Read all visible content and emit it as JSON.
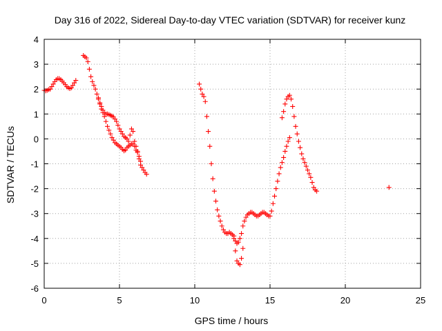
{
  "chart_data": {
    "type": "scatter",
    "title": "Day 316 of 2022, Sidereal Day-to-day VTEC variation (SDTVAR) for receiver kunz",
    "xlabel": "GPS time / hours",
    "ylabel": "SDTVAR / TECUs",
    "xlim": [
      0,
      25
    ],
    "ylim": [
      -6,
      4
    ],
    "xticks": [
      0,
      5,
      10,
      15,
      20,
      25
    ],
    "yticks": [
      -6,
      -5,
      -4,
      -3,
      -2,
      -1,
      0,
      1,
      2,
      3,
      4
    ],
    "grid": true,
    "marker": "plus",
    "color": "#ff0000",
    "series": [
      {
        "points": [
          [
            0.0,
            1.95
          ],
          [
            0.1,
            1.93
          ],
          [
            0.2,
            1.95
          ],
          [
            0.3,
            1.98
          ],
          [
            0.4,
            2.0
          ],
          [
            0.5,
            2.1
          ],
          [
            0.6,
            2.2
          ],
          [
            0.7,
            2.3
          ],
          [
            0.8,
            2.38
          ],
          [
            0.9,
            2.42
          ],
          [
            1.0,
            2.42
          ],
          [
            1.1,
            2.38
          ],
          [
            1.2,
            2.32
          ],
          [
            1.3,
            2.25
          ],
          [
            1.4,
            2.18
          ],
          [
            1.5,
            2.1
          ],
          [
            1.6,
            2.05
          ],
          [
            1.7,
            2.02
          ],
          [
            1.8,
            2.05
          ],
          [
            1.9,
            2.15
          ],
          [
            2.0,
            2.25
          ],
          [
            2.1,
            2.35
          ],
          [
            2.6,
            3.35
          ],
          [
            2.7,
            3.3
          ],
          [
            2.8,
            3.25
          ],
          [
            2.9,
            3.1
          ],
          [
            3.0,
            2.8
          ],
          [
            3.1,
            2.5
          ],
          [
            3.2,
            2.3
          ],
          [
            3.3,
            2.15
          ],
          [
            3.4,
            2.0
          ],
          [
            3.5,
            1.8
          ],
          [
            3.6,
            1.6
          ],
          [
            3.7,
            1.4
          ],
          [
            3.8,
            1.2
          ],
          [
            3.9,
            1.05
          ],
          [
            4.0,
            0.9
          ],
          [
            4.1,
            0.7
          ],
          [
            4.2,
            0.5
          ],
          [
            4.3,
            0.35
          ],
          [
            4.4,
            0.2
          ],
          [
            4.5,
            0.05
          ],
          [
            4.6,
            -0.05
          ],
          [
            4.7,
            -0.15
          ],
          [
            4.8,
            -0.2
          ],
          [
            4.9,
            -0.25
          ],
          [
            5.0,
            -0.3
          ],
          [
            5.1,
            -0.35
          ],
          [
            5.2,
            -0.42
          ],
          [
            5.3,
            -0.48
          ],
          [
            5.4,
            -0.45
          ],
          [
            5.5,
            -0.35
          ],
          [
            5.6,
            -0.3
          ],
          [
            5.7,
            -0.25
          ],
          [
            5.8,
            -0.2
          ],
          [
            5.9,
            -0.2
          ],
          [
            6.0,
            -0.3
          ],
          [
            6.1,
            -0.45
          ],
          [
            6.2,
            -0.55
          ],
          [
            6.3,
            -0.7
          ],
          [
            6.4,
            -0.9
          ],
          [
            3.6,
            1.65
          ],
          [
            3.7,
            1.45
          ],
          [
            3.8,
            1.3
          ],
          [
            3.9,
            1.15
          ],
          [
            4.0,
            1.05
          ],
          [
            4.1,
            1.0
          ],
          [
            4.2,
            1.0
          ],
          [
            4.3,
            0.98
          ],
          [
            4.4,
            0.95
          ],
          [
            4.5,
            0.92
          ],
          [
            4.6,
            0.88
          ],
          [
            4.7,
            0.8
          ],
          [
            4.8,
            0.7
          ],
          [
            4.9,
            0.55
          ],
          [
            5.0,
            0.4
          ],
          [
            5.1,
            0.3
          ],
          [
            5.2,
            0.2
          ],
          [
            5.3,
            0.1
          ],
          [
            5.4,
            0.05
          ],
          [
            5.5,
            0.0
          ],
          [
            5.6,
            -0.1
          ],
          [
            5.7,
            0.15
          ],
          [
            5.8,
            0.4
          ],
          [
            5.9,
            0.3
          ],
          [
            6.0,
            -0.1
          ],
          [
            6.1,
            -0.3
          ],
          [
            6.2,
            -0.5
          ],
          [
            6.3,
            -0.8
          ],
          [
            6.4,
            -1.05
          ],
          [
            6.5,
            -1.15
          ],
          [
            6.6,
            -1.25
          ],
          [
            6.7,
            -1.35
          ],
          [
            6.8,
            -1.42
          ],
          [
            10.3,
            2.2
          ],
          [
            10.4,
            2.0
          ],
          [
            10.5,
            1.8
          ],
          [
            10.6,
            1.7
          ],
          [
            10.7,
            1.5
          ],
          [
            10.8,
            0.9
          ],
          [
            10.9,
            0.3
          ],
          [
            11.0,
            -0.3
          ],
          [
            11.1,
            -1.0
          ],
          [
            11.2,
            -1.6
          ],
          [
            11.3,
            -2.1
          ],
          [
            11.4,
            -2.5
          ],
          [
            11.5,
            -2.85
          ],
          [
            11.6,
            -3.1
          ],
          [
            11.7,
            -3.3
          ],
          [
            11.8,
            -3.5
          ],
          [
            11.9,
            -3.65
          ],
          [
            12.0,
            -3.75
          ],
          [
            12.1,
            -3.8
          ],
          [
            12.2,
            -3.8
          ],
          [
            12.3,
            -3.75
          ],
          [
            12.4,
            -3.8
          ],
          [
            12.5,
            -3.85
          ],
          [
            12.6,
            -4.0
          ],
          [
            12.7,
            -4.5
          ],
          [
            12.8,
            -4.9
          ],
          [
            12.9,
            -5.0
          ],
          [
            13.0,
            -5.05
          ],
          [
            13.1,
            -4.8
          ],
          [
            13.2,
            -4.4
          ],
          [
            12.6,
            -3.9
          ],
          [
            12.7,
            -4.1
          ],
          [
            12.8,
            -4.2
          ],
          [
            12.9,
            -4.15
          ],
          [
            13.0,
            -4.0
          ],
          [
            13.1,
            -3.8
          ],
          [
            13.2,
            -3.5
          ],
          [
            13.3,
            -3.3
          ],
          [
            13.4,
            -3.15
          ],
          [
            13.5,
            -3.05
          ],
          [
            13.6,
            -3.0
          ],
          [
            13.7,
            -2.95
          ],
          [
            13.8,
            -2.95
          ],
          [
            13.9,
            -3.0
          ],
          [
            14.0,
            -3.05
          ],
          [
            14.1,
            -3.1
          ],
          [
            14.2,
            -3.1
          ],
          [
            14.3,
            -3.05
          ],
          [
            14.4,
            -3.0
          ],
          [
            14.5,
            -2.95
          ],
          [
            14.6,
            -2.95
          ],
          [
            14.7,
            -3.0
          ],
          [
            14.8,
            -3.05
          ],
          [
            14.9,
            -3.1
          ],
          [
            15.0,
            -3.1
          ],
          [
            15.1,
            -2.9
          ],
          [
            15.2,
            -2.6
          ],
          [
            15.3,
            -2.3
          ],
          [
            15.4,
            -2.0
          ],
          [
            15.5,
            -1.7
          ],
          [
            15.6,
            -1.4
          ],
          [
            15.7,
            -1.15
          ],
          [
            15.8,
            -0.95
          ],
          [
            15.9,
            -0.75
          ],
          [
            16.0,
            -0.5
          ],
          [
            16.1,
            -0.3
          ],
          [
            16.2,
            -0.1
          ],
          [
            16.3,
            0.05
          ],
          [
            15.8,
            0.85
          ],
          [
            15.9,
            1.1
          ],
          [
            16.0,
            1.4
          ],
          [
            16.1,
            1.6
          ],
          [
            16.2,
            1.7
          ],
          [
            16.3,
            1.75
          ],
          [
            16.4,
            1.6
          ],
          [
            16.5,
            1.3
          ],
          [
            16.6,
            0.9
          ],
          [
            16.7,
            0.5
          ],
          [
            16.8,
            0.2
          ],
          [
            16.9,
            -0.1
          ],
          [
            17.0,
            -0.35
          ],
          [
            17.1,
            -0.6
          ],
          [
            17.2,
            -0.8
          ],
          [
            17.3,
            -0.95
          ],
          [
            17.4,
            -1.1
          ],
          [
            17.5,
            -1.25
          ],
          [
            17.6,
            -1.4
          ],
          [
            17.7,
            -1.55
          ],
          [
            17.8,
            -1.75
          ],
          [
            17.9,
            -1.95
          ],
          [
            18.0,
            -2.05
          ],
          [
            18.1,
            -2.1
          ],
          [
            22.9,
            -1.95
          ]
        ]
      }
    ]
  }
}
